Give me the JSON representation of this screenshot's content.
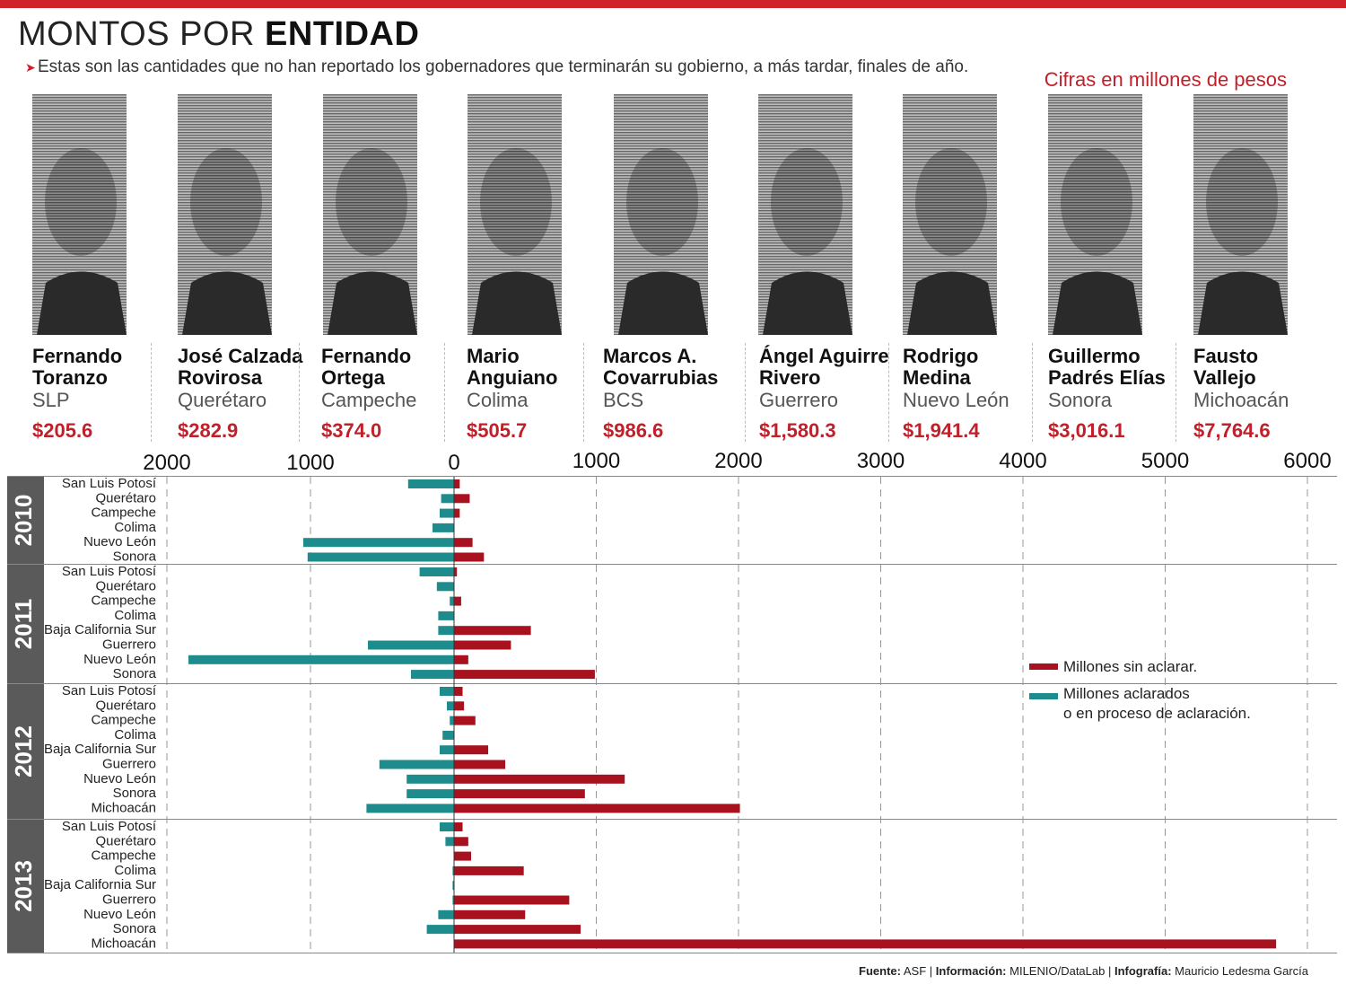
{
  "header": {
    "title_light": "MONTOS POR ",
    "title_bold": "ENTIDAD",
    "subtitle": "Estas son las cantidades que no han reportado los gobernadores que terminarán su gobierno, a más tardar, finales de año.",
    "units": "Cifras en millones de pesos"
  },
  "governors": [
    {
      "name": "Fernando\nToranzo",
      "state": "SLP",
      "amount": "$205.6"
    },
    {
      "name": "José Calzada\nRovirosa",
      "state": "Querétaro",
      "amount": "$282.9"
    },
    {
      "name": "Fernando\nOrtega",
      "state": "Campeche",
      "amount": "$374.0"
    },
    {
      "name": "Mario\nAnguiano",
      "state": "Colima",
      "amount": "$505.7"
    },
    {
      "name": "Marcos A.\nCovarrubias",
      "state": "BCS",
      "amount": "$986.6"
    },
    {
      "name": "Ángel Aguirre\nRivero",
      "state": "Guerrero",
      "amount": "$1,580.3"
    },
    {
      "name": "Rodrigo\nMedina",
      "state": "Nuevo León",
      "amount": "$1,941.4"
    },
    {
      "name": "Guillermo\nPadrés Elías",
      "state": "Sonora",
      "amount": "$3,016.1"
    },
    {
      "name": "Fausto\nVallejo",
      "state": "Michoacán",
      "amount": "$7,764.6"
    }
  ],
  "colors": {
    "unclarified": "#a8121e",
    "clarified": "#1e8c8c",
    "year_band": "#5a5a5a",
    "accent": "#d0202a"
  },
  "legend": {
    "unclarified": "Millones sin aclarar.",
    "clarified_line1": "Millones aclarados",
    "clarified_line2": "o en proceso de aclaración."
  },
  "source": {
    "fuente_label": "Fuente:",
    "fuente": "ASF",
    "info_label": "Información:",
    "info": "MILENIO/DataLab",
    "infografia_label": "Infografía:",
    "infografia": "Mauricio Ledesma García"
  },
  "chart_data": {
    "type": "bar",
    "orientation": "horizontal-diverging",
    "units": "millones de pesos",
    "axis_ticks_left": [
      2000,
      1000,
      0
    ],
    "axis_ticks_right": [
      1000,
      2000,
      3000,
      4000,
      5000,
      6000
    ],
    "xlim": [
      -2000,
      6000
    ],
    "grid": true,
    "legend_position": "right",
    "series": [
      {
        "name": "Millones sin aclarar.",
        "key": "unclarified"
      },
      {
        "name": "Millones aclarados o en proceso de aclaración.",
        "key": "clarified"
      }
    ],
    "groups": [
      {
        "year": "2010",
        "rows": [
          {
            "state": "San Luis Potosí",
            "clarified": 320,
            "unclarified": 40
          },
          {
            "state": "Querétaro",
            "clarified": 90,
            "unclarified": 110
          },
          {
            "state": "Campeche",
            "clarified": 100,
            "unclarified": 40
          },
          {
            "state": "Colima",
            "clarified": 150,
            "unclarified": 0
          },
          {
            "state": "Nuevo León",
            "clarified": 1050,
            "unclarified": 130
          },
          {
            "state": "Sonora",
            "clarified": 1020,
            "unclarified": 210
          }
        ]
      },
      {
        "year": "2011",
        "rows": [
          {
            "state": "San Luis Potosí",
            "clarified": 240,
            "unclarified": 20
          },
          {
            "state": "Querétaro",
            "clarified": 120,
            "unclarified": 0
          },
          {
            "state": "Campeche",
            "clarified": 30,
            "unclarified": 50
          },
          {
            "state": "Colima",
            "clarified": 110,
            "unclarified": 0
          },
          {
            "state": "Baja California Sur",
            "clarified": 110,
            "unclarified": 540
          },
          {
            "state": "Guerrero",
            "clarified": 600,
            "unclarified": 400
          },
          {
            "state": "Nuevo León",
            "clarified": 1850,
            "unclarified": 100
          },
          {
            "state": "Sonora",
            "clarified": 300,
            "unclarified": 990
          }
        ]
      },
      {
        "year": "2012",
        "rows": [
          {
            "state": "San Luis Potosí",
            "clarified": 100,
            "unclarified": 60
          },
          {
            "state": "Querétaro",
            "clarified": 50,
            "unclarified": 70
          },
          {
            "state": "Campeche",
            "clarified": 30,
            "unclarified": 150
          },
          {
            "state": "Colima",
            "clarified": 80,
            "unclarified": 0
          },
          {
            "state": "Baja California Sur",
            "clarified": 100,
            "unclarified": 240
          },
          {
            "state": "Guerrero",
            "clarified": 520,
            "unclarified": 360
          },
          {
            "state": "Nuevo León",
            "clarified": 330,
            "unclarified": 1200
          },
          {
            "state": "Sonora",
            "clarified": 330,
            "unclarified": 920
          },
          {
            "state": "Michoacán",
            "clarified": 610,
            "unclarified": 2010
          }
        ]
      },
      {
        "year": "2013",
        "rows": [
          {
            "state": "San Luis Potosí",
            "clarified": 100,
            "unclarified": 60
          },
          {
            "state": "Querétaro",
            "clarified": 60,
            "unclarified": 100
          },
          {
            "state": "Campeche",
            "clarified": 0,
            "unclarified": 120
          },
          {
            "state": "Colima",
            "clarified": 10,
            "unclarified": 490
          },
          {
            "state": "Baja California Sur",
            "clarified": 10,
            "unclarified": 0
          },
          {
            "state": "Guerrero",
            "clarified": 10,
            "unclarified": 810
          },
          {
            "state": "Nuevo León",
            "clarified": 110,
            "unclarified": 500
          },
          {
            "state": "Sonora",
            "clarified": 190,
            "unclarified": 890
          },
          {
            "state": "Michoacán",
            "clarified": 0,
            "unclarified": 5780
          }
        ]
      }
    ]
  }
}
